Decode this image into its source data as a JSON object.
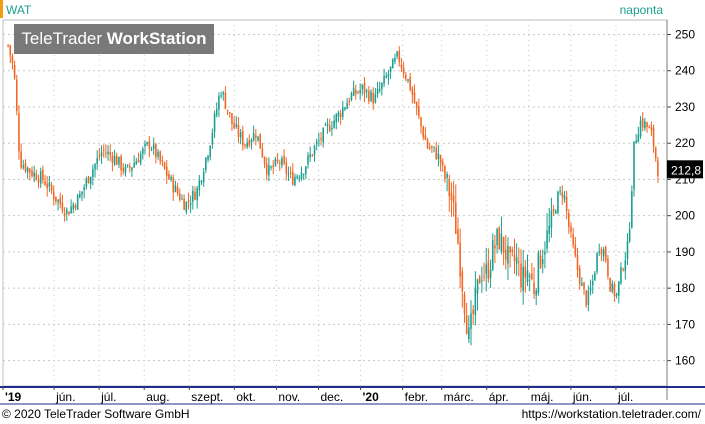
{
  "header": {
    "ticker": "WAT",
    "period": "naponta",
    "brand_regular": "TeleTrader ",
    "brand_bold": "WorkStation"
  },
  "footer": {
    "copyright": "© 2020 TeleTrader Software GmbH",
    "url": "https://workstation.teletrader.com/"
  },
  "colors": {
    "up": "#1a9e8e",
    "down": "#f26522",
    "grid": "#c8c8c8",
    "last_badge_bg": "#000000",
    "last_badge_fg": "#ffffff"
  },
  "chart_data": {
    "type": "candlestick",
    "ylim": [
      153,
      254
    ],
    "y_ticks": [
      160,
      170,
      180,
      190,
      200,
      210,
      220,
      230,
      240,
      250
    ],
    "grid": true,
    "last_price_label": "212,8",
    "x_ticks": [
      {
        "label": "'19",
        "bold": true,
        "t": 0
      },
      {
        "label": "jún.",
        "t": 0.085
      },
      {
        "label": "júl.",
        "t": 0.16
      },
      {
        "label": "aug.",
        "t": 0.235
      },
      {
        "label": "szept.",
        "t": 0.31
      },
      {
        "label": "okt.",
        "t": 0.385
      },
      {
        "label": "nov.",
        "t": 0.455
      },
      {
        "label": "dec.",
        "t": 0.525
      },
      {
        "label": "'20",
        "bold": true,
        "t": 0.595
      },
      {
        "label": "febr.",
        "t": 0.665
      },
      {
        "label": "márc.",
        "t": 0.73
      },
      {
        "label": "ápr.",
        "t": 0.805
      },
      {
        "label": "máj.",
        "t": 0.875
      },
      {
        "label": "jún.",
        "t": 0.945
      },
      {
        "label": "júl.",
        "t": 1.02
      }
    ],
    "close_path": [
      [
        0,
        247
      ],
      [
        0.01,
        240
      ],
      [
        0.02,
        215
      ],
      [
        0.04,
        212
      ],
      [
        0.06,
        210
      ],
      [
        0.08,
        205
      ],
      [
        0.1,
        201
      ],
      [
        0.12,
        205
      ],
      [
        0.14,
        212
      ],
      [
        0.16,
        218
      ],
      [
        0.18,
        216
      ],
      [
        0.2,
        212
      ],
      [
        0.22,
        216
      ],
      [
        0.24,
        220
      ],
      [
        0.26,
        214
      ],
      [
        0.28,
        208
      ],
      [
        0.3,
        203
      ],
      [
        0.32,
        207
      ],
      [
        0.34,
        219
      ],
      [
        0.36,
        235
      ],
      [
        0.38,
        225
      ],
      [
        0.4,
        220
      ],
      [
        0.42,
        223
      ],
      [
        0.44,
        212
      ],
      [
        0.46,
        215
      ],
      [
        0.48,
        210
      ],
      [
        0.5,
        213
      ],
      [
        0.52,
        219
      ],
      [
        0.54,
        224
      ],
      [
        0.56,
        228
      ],
      [
        0.58,
        233
      ],
      [
        0.6,
        235
      ],
      [
        0.62,
        232
      ],
      [
        0.64,
        238
      ],
      [
        0.66,
        244
      ],
      [
        0.68,
        236
      ],
      [
        0.69,
        230
      ],
      [
        0.7,
        224
      ],
      [
        0.71,
        219
      ],
      [
        0.72,
        218
      ],
      [
        0.73,
        216
      ],
      [
        0.74,
        210
      ],
      [
        0.75,
        205
      ],
      [
        0.76,
        195
      ],
      [
        0.77,
        180
      ],
      [
        0.78,
        166
      ],
      [
        0.79,
        175
      ],
      [
        0.8,
        185
      ],
      [
        0.81,
        184
      ],
      [
        0.82,
        190
      ],
      [
        0.83,
        194
      ],
      [
        0.84,
        191
      ],
      [
        0.85,
        186
      ],
      [
        0.86,
        188
      ],
      [
        0.87,
        182
      ],
      [
        0.88,
        185
      ],
      [
        0.89,
        180
      ],
      [
        0.9,
        188
      ],
      [
        0.91,
        193
      ],
      [
        0.92,
        198
      ],
      [
        0.93,
        205
      ],
      [
        0.94,
        207
      ],
      [
        0.95,
        196
      ],
      [
        0.96,
        188
      ],
      [
        0.97,
        181
      ],
      [
        0.98,
        176
      ],
      [
        0.99,
        182
      ],
      [
        1.0,
        192
      ],
      [
        1.01,
        190
      ],
      [
        1.02,
        180
      ],
      [
        1.03,
        178
      ],
      [
        1.04,
        186
      ],
      [
        1.05,
        192
      ],
      [
        1.06,
        220
      ],
      [
        1.07,
        226
      ],
      [
        1.08,
        225
      ],
      [
        1.09,
        222
      ],
      [
        1.1,
        212.8
      ]
    ]
  }
}
